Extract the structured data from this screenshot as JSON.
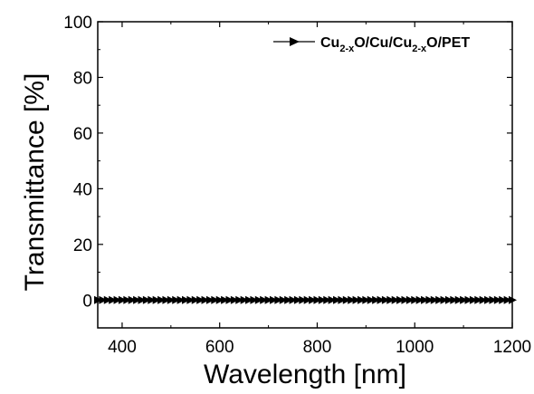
{
  "chart_data": {
    "type": "line",
    "xlabel": "Wavelength [nm]",
    "ylabel": "Transmittance [%]",
    "xlim": [
      350,
      1200
    ],
    "ylim": [
      -10,
      100
    ],
    "x_ticks": [
      400,
      600,
      800,
      1000,
      1200
    ],
    "y_ticks": [
      0,
      20,
      40,
      60,
      80,
      100
    ],
    "x_ticks_labels": [
      "400",
      "600",
      "800",
      "1000",
      "1200"
    ],
    "y_ticks_labels": [
      "0",
      "20",
      "40",
      "60",
      "80",
      "100"
    ],
    "grid": false,
    "legend_position": "top-right",
    "series": [
      {
        "name": "Cu2-xO/Cu/Cu2-xO/PET",
        "name_parts": {
          "base1": "Cu",
          "sub1": "2-x",
          "mid": "O/Cu/Cu",
          "sub2": "2-x",
          "tail": "O/PET"
        },
        "marker": "right-triangle",
        "color": "#000000",
        "x_start": 350,
        "x_end": 1200,
        "x_step": 10,
        "values_constant": 0
      }
    ]
  }
}
